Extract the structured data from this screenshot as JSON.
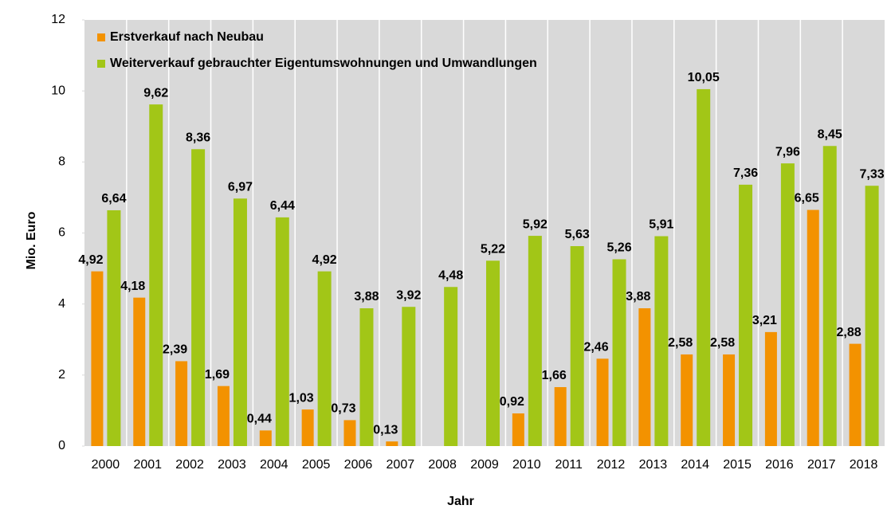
{
  "chart_data": {
    "type": "bar",
    "x_label": "Jahr",
    "y_label": "Mio. Euro",
    "categories": [
      "2000",
      "2001",
      "2002",
      "2003",
      "2004",
      "2005",
      "2006",
      "2007",
      "2008",
      "2009",
      "2010",
      "2011",
      "2012",
      "2013",
      "2014",
      "2015",
      "2016",
      "2017",
      "2018"
    ],
    "series": [
      {
        "name": "Erstverkauf nach Neubau",
        "color": "#f39200",
        "values": [
          4.92,
          4.18,
          2.39,
          1.69,
          0.44,
          1.03,
          0.73,
          0.13,
          null,
          null,
          0.92,
          1.66,
          2.46,
          3.88,
          2.58,
          2.58,
          3.21,
          6.65,
          2.88
        ],
        "value_labels": [
          "4,92",
          "4,18",
          "2,39",
          "1,69",
          "0,44",
          "1,03",
          "0,73",
          "0,13",
          null,
          null,
          "0,92",
          "1,66",
          "2,46",
          "3,88",
          "2,58",
          "2,58",
          "3,21",
          "6,65",
          "2,88"
        ]
      },
      {
        "name": "Weiterverkauf gebrauchter Eigentumswohnungen und Umwandlungen",
        "color": "#a2c617",
        "values": [
          6.64,
          9.62,
          8.36,
          6.97,
          6.44,
          4.92,
          3.88,
          3.92,
          4.48,
          5.22,
          5.92,
          5.63,
          5.26,
          5.91,
          10.05,
          7.36,
          7.96,
          8.45,
          7.33
        ],
        "value_labels": [
          "6,64",
          "9,62",
          "8,36",
          "6,97",
          "6,44",
          "4,92",
          "3,88",
          "3,92",
          "4,48",
          "5,22",
          "5,92",
          "5,63",
          "5,26",
          "5,91",
          "10,05",
          "7,36",
          "7,96",
          "8,45",
          "7,33"
        ]
      }
    ],
    "ylim": [
      0,
      12
    ],
    "yticks": [
      0,
      2,
      4,
      6,
      8,
      10,
      12
    ],
    "legend": "top-left"
  }
}
